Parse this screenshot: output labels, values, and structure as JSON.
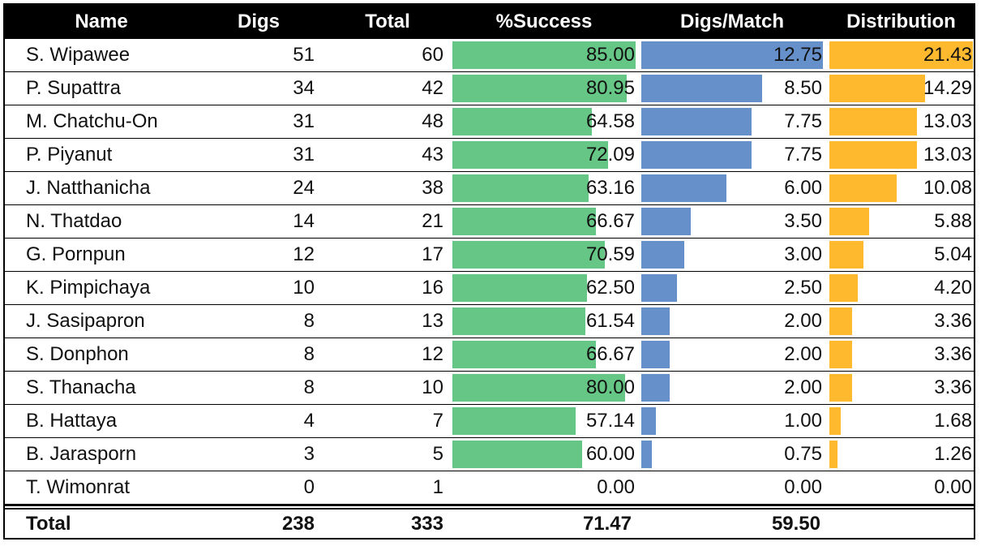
{
  "chart_data": {
    "type": "table",
    "columns": [
      "Name",
      "Digs",
      "Total",
      "%Success",
      "Digs/Match",
      "Distribution"
    ],
    "rows": [
      {
        "name": "S. Wipawee",
        "digs": "51",
        "total": "60",
        "success": "85.00",
        "digs_match": "12.75",
        "distribution": "21.43"
      },
      {
        "name": "P. Supattra",
        "digs": "34",
        "total": "42",
        "success": "80.95",
        "digs_match": "8.50",
        "distribution": "14.29"
      },
      {
        "name": "M. Chatchu-On",
        "digs": "31",
        "total": "48",
        "success": "64.58",
        "digs_match": "7.75",
        "distribution": "13.03"
      },
      {
        "name": "P. Piyanut",
        "digs": "31",
        "total": "43",
        "success": "72.09",
        "digs_match": "7.75",
        "distribution": "13.03"
      },
      {
        "name": "J. Natthanicha",
        "digs": "24",
        "total": "38",
        "success": "63.16",
        "digs_match": "6.00",
        "distribution": "10.08"
      },
      {
        "name": "N. Thatdao",
        "digs": "14",
        "total": "21",
        "success": "66.67",
        "digs_match": "3.50",
        "distribution": "5.88"
      },
      {
        "name": "G. Pornpun",
        "digs": "12",
        "total": "17",
        "success": "70.59",
        "digs_match": "3.00",
        "distribution": "5.04"
      },
      {
        "name": "K. Pimpichaya",
        "digs": "10",
        "total": "16",
        "success": "62.50",
        "digs_match": "2.50",
        "distribution": "4.20"
      },
      {
        "name": "J. Sasipapron",
        "digs": "8",
        "total": "13",
        "success": "61.54",
        "digs_match": "2.00",
        "distribution": "3.36"
      },
      {
        "name": "S. Donphon",
        "digs": "8",
        "total": "12",
        "success": "66.67",
        "digs_match": "2.00",
        "distribution": "3.36"
      },
      {
        "name": "S. Thanacha",
        "digs": "8",
        "total": "10",
        "success": "80.00",
        "digs_match": "2.00",
        "distribution": "3.36"
      },
      {
        "name": "B. Hattaya",
        "digs": "4",
        "total": "7",
        "success": "57.14",
        "digs_match": "1.00",
        "distribution": "1.68"
      },
      {
        "name": "B. Jarasporn",
        "digs": "3",
        "total": "5",
        "success": "60.00",
        "digs_match": "0.75",
        "distribution": "1.26"
      },
      {
        "name": "T. Wimonrat",
        "digs": "0",
        "total": "1",
        "success": "0.00",
        "digs_match": "0.00",
        "distribution": "0.00"
      }
    ],
    "totals": {
      "label": "Total",
      "digs": "238",
      "total": "333",
      "success": "71.47",
      "digs_match": "59.50"
    },
    "bar_columns": {
      "success": {
        "color": "#66c686",
        "max": 85
      },
      "digs_match": {
        "color": "#6690ca",
        "max": 12.75
      },
      "distribution": {
        "color": "#ffb92e",
        "max": 21.43
      }
    }
  }
}
